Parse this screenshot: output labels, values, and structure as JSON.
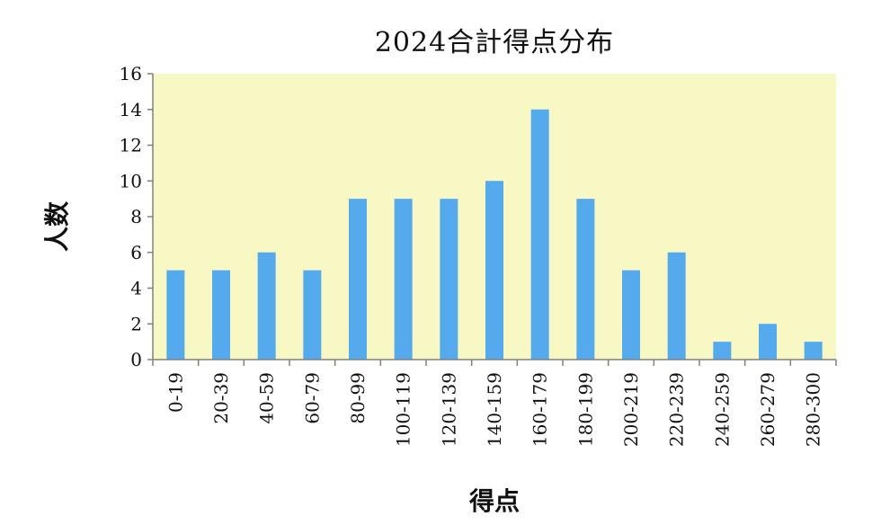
{
  "chart_data": {
    "type": "bar",
    "title": "2024合計得点分布",
    "xlabel": "得点",
    "ylabel": "人数",
    "categories": [
      "0-19",
      "20-39",
      "40-59",
      "60-79",
      "80-99",
      "100-119",
      "120-139",
      "140-159",
      "160-179",
      "180-199",
      "200-219",
      "220-239",
      "240-259",
      "260-279",
      "280-300"
    ],
    "values": [
      5,
      5,
      6,
      5,
      9,
      9,
      9,
      10,
      14,
      9,
      5,
      6,
      1,
      2,
      1
    ],
    "ylim": [
      0,
      16
    ],
    "yticks": [
      0,
      2,
      4,
      6,
      8,
      10,
      12,
      14,
      16
    ],
    "grid": false,
    "legend": "none",
    "colors": {
      "bar": "#55AAEE",
      "plot_bg": "#F8F8C4",
      "axis": "#808080"
    }
  }
}
